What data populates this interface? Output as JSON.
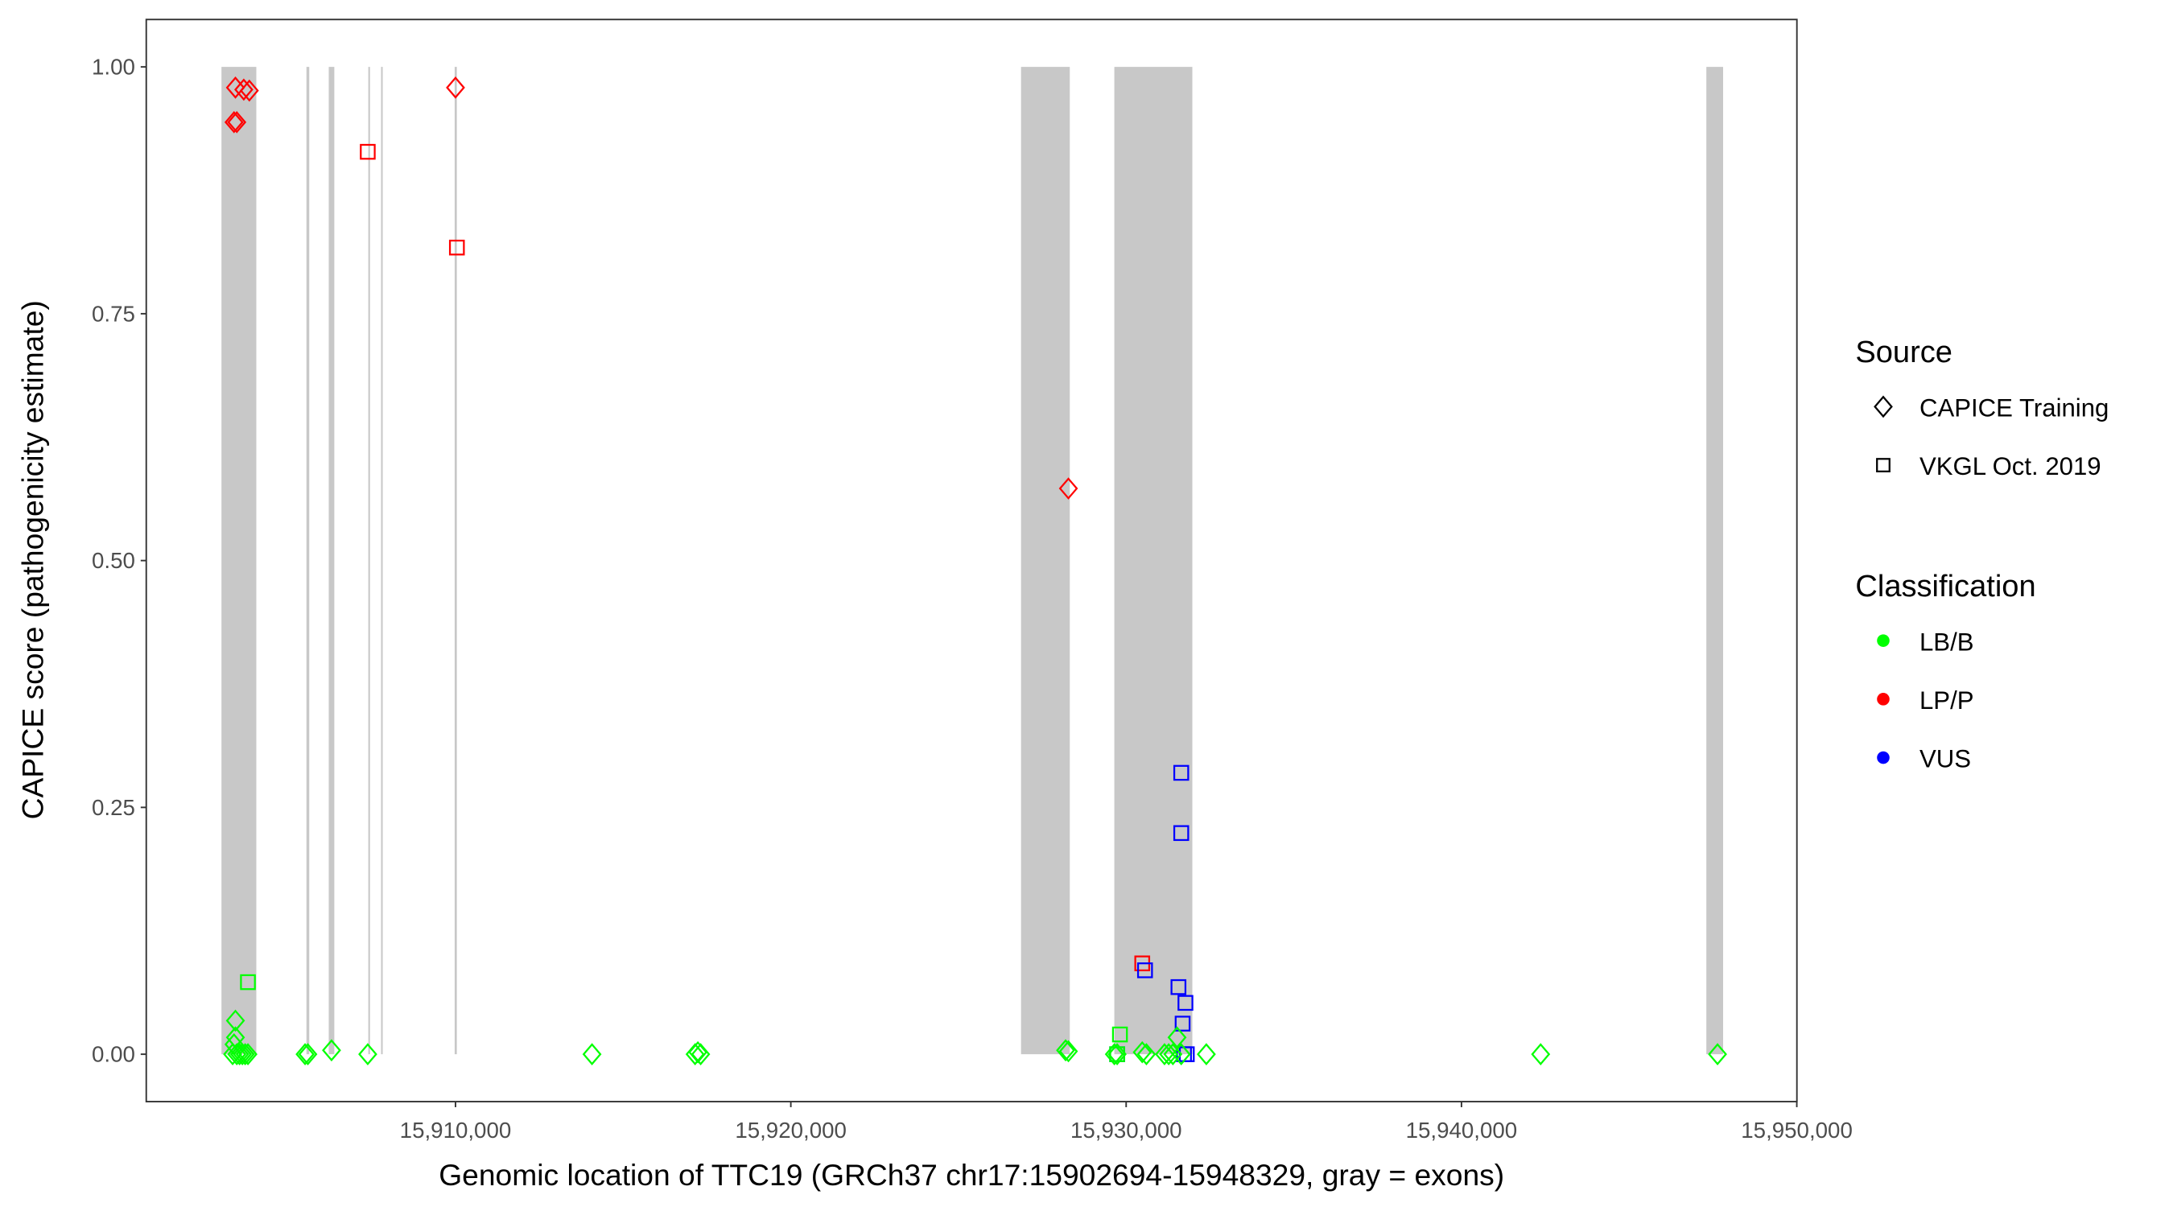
{
  "chart_data": {
    "type": "scatter",
    "xlabel": "Genomic location of TTC19 (GRCh37 chr17:15902694-15948329, gray = exons)",
    "ylabel": "CAPICE score (pathogenicity estimate)",
    "xlim": [
      15900778,
      15950003
    ],
    "ylim": [
      -0.048,
      1.048
    ],
    "x_ticks": [
      15910000,
      15920000,
      15930000,
      15940000,
      15950000
    ],
    "x_tick_labels": [
      "15,910,000",
      "15,920,000",
      "15,930,000",
      "15,940,000",
      "15,950,000"
    ],
    "y_ticks": [
      0,
      0.25,
      0.5,
      0.75,
      1.0
    ],
    "y_tick_labels": [
      "0.00",
      "0.25",
      "0.50",
      "0.75",
      "1.00"
    ],
    "grid": false,
    "exon_color": "#c8c8c8",
    "exons": [
      [
        15903021,
        15904060
      ],
      [
        15905555,
        15905639
      ],
      [
        15906220,
        15906386
      ],
      [
        15907400,
        15907450
      ],
      [
        15907780,
        15907820
      ],
      [
        15909975,
        15910040
      ],
      [
        15926865,
        15928319
      ],
      [
        15929648,
        15931974
      ],
      [
        15947303,
        15947802
      ]
    ],
    "legend": {
      "placement": "right",
      "source_title": "Source",
      "source_items": [
        {
          "label": "CAPICE Training",
          "shape": "diamond"
        },
        {
          "label": "VKGL Oct. 2019",
          "shape": "square"
        }
      ],
      "class_title": "Classification",
      "class_items": [
        {
          "label": "LB/B",
          "color": "#00ff00"
        },
        {
          "label": "LP/P",
          "color": "#ff0000"
        },
        {
          "label": "VUS",
          "color": "#0000ff"
        }
      ]
    },
    "points": [
      {
        "x": 15903437,
        "y": 0.979,
        "source": "CAPICE Training",
        "class": "LP/P"
      },
      {
        "x": 15903686,
        "y": 0.977,
        "source": "CAPICE Training",
        "class": "LP/P"
      },
      {
        "x": 15903852,
        "y": 0.976,
        "source": "CAPICE Training",
        "class": "LP/P"
      },
      {
        "x": 15903395,
        "y": 0.944,
        "source": "CAPICE Training",
        "class": "LP/P"
      },
      {
        "x": 15903478,
        "y": 0.944,
        "source": "CAPICE Training",
        "class": "LP/P"
      },
      {
        "x": 15910000,
        "y": 0.979,
        "source": "CAPICE Training",
        "class": "LP/P"
      },
      {
        "x": 15928278,
        "y": 0.573,
        "source": "CAPICE Training",
        "class": "LP/P"
      },
      {
        "x": 15907383,
        "y": 0.914,
        "source": "VKGL Oct. 2019",
        "class": "LP/P"
      },
      {
        "x": 15910042,
        "y": 0.817,
        "source": "VKGL Oct. 2019",
        "class": "LP/P"
      },
      {
        "x": 15930480,
        "y": 0.092,
        "source": "VKGL Oct. 2019",
        "class": "LP/P"
      },
      {
        "x": 15931643,
        "y": 0.285,
        "source": "VKGL Oct. 2019",
        "class": "VUS"
      },
      {
        "x": 15931643,
        "y": 0.224,
        "source": "VKGL Oct. 2019",
        "class": "VUS"
      },
      {
        "x": 15930563,
        "y": 0.085,
        "source": "VKGL Oct. 2019",
        "class": "VUS"
      },
      {
        "x": 15931560,
        "y": 0.068,
        "source": "VKGL Oct. 2019",
        "class": "VUS"
      },
      {
        "x": 15931768,
        "y": 0.052,
        "source": "VKGL Oct. 2019",
        "class": "VUS"
      },
      {
        "x": 15931684,
        "y": 0.031,
        "source": "VKGL Oct. 2019",
        "class": "VUS"
      },
      {
        "x": 15931726,
        "y": 0.0,
        "source": "VKGL Oct. 2019",
        "class": "VUS"
      },
      {
        "x": 15931809,
        "y": 0.0,
        "source": "VKGL Oct. 2019",
        "class": "VUS"
      },
      {
        "x": 15929732,
        "y": 0.0,
        "source": "VKGL Oct. 2019",
        "class": "VUS"
      },
      {
        "x": 15903810,
        "y": 0.073,
        "source": "VKGL Oct. 2019",
        "class": "LB/B"
      },
      {
        "x": 15929815,
        "y": 0.02,
        "source": "VKGL Oct. 2019",
        "class": "LB/B"
      },
      {
        "x": 15929732,
        "y": 0.0,
        "source": "VKGL Oct. 2019",
        "class": "LB/B"
      },
      {
        "x": 15903437,
        "y": 0.034,
        "source": "CAPICE Training",
        "class": "LB/B"
      },
      {
        "x": 15903437,
        "y": 0.017,
        "source": "CAPICE Training",
        "class": "LB/B"
      },
      {
        "x": 15903395,
        "y": 0.01,
        "source": "CAPICE Training",
        "class": "LB/B"
      },
      {
        "x": 15903354,
        "y": 0.0,
        "source": "CAPICE Training",
        "class": "LB/B"
      },
      {
        "x": 15903478,
        "y": 0.0,
        "source": "CAPICE Training",
        "class": "LB/B"
      },
      {
        "x": 15903561,
        "y": 0.0,
        "source": "CAPICE Training",
        "class": "LB/B"
      },
      {
        "x": 15903644,
        "y": 0.0,
        "source": "CAPICE Training",
        "class": "LB/B"
      },
      {
        "x": 15903727,
        "y": 0.0,
        "source": "CAPICE Training",
        "class": "LB/B"
      },
      {
        "x": 15903810,
        "y": 0.0,
        "source": "CAPICE Training",
        "class": "LB/B"
      },
      {
        "x": 15905514,
        "y": 0.0,
        "source": "CAPICE Training",
        "class": "LB/B"
      },
      {
        "x": 15905597,
        "y": 0.0,
        "source": "CAPICE Training",
        "class": "LB/B"
      },
      {
        "x": 15906303,
        "y": 0.004,
        "source": "CAPICE Training",
        "class": "LB/B"
      },
      {
        "x": 15907383,
        "y": 0.0,
        "source": "CAPICE Training",
        "class": "LB/B"
      },
      {
        "x": 15914071,
        "y": 0.0,
        "source": "CAPICE Training",
        "class": "LB/B"
      },
      {
        "x": 15917145,
        "y": 0.0,
        "source": "CAPICE Training",
        "class": "LB/B"
      },
      {
        "x": 15917228,
        "y": 0.002,
        "source": "CAPICE Training",
        "class": "LB/B"
      },
      {
        "x": 15917311,
        "y": 0.0,
        "source": "CAPICE Training",
        "class": "LB/B"
      },
      {
        "x": 15928194,
        "y": 0.004,
        "source": "CAPICE Training",
        "class": "LB/B"
      },
      {
        "x": 15928278,
        "y": 0.003,
        "source": "CAPICE Training",
        "class": "LB/B"
      },
      {
        "x": 15929648,
        "y": 0.0,
        "source": "CAPICE Training",
        "class": "LB/B"
      },
      {
        "x": 15929732,
        "y": 0.0,
        "source": "CAPICE Training",
        "class": "LB/B"
      },
      {
        "x": 15930480,
        "y": 0.002,
        "source": "CAPICE Training",
        "class": "LB/B"
      },
      {
        "x": 15930604,
        "y": 0.0,
        "source": "CAPICE Training",
        "class": "LB/B"
      },
      {
        "x": 15931144,
        "y": 0.0,
        "source": "CAPICE Training",
        "class": "LB/B"
      },
      {
        "x": 15931269,
        "y": 0.0,
        "source": "CAPICE Training",
        "class": "LB/B"
      },
      {
        "x": 15931393,
        "y": 0.0,
        "source": "CAPICE Training",
        "class": "LB/B"
      },
      {
        "x": 15931518,
        "y": 0.017,
        "source": "CAPICE Training",
        "class": "LB/B"
      },
      {
        "x": 15931643,
        "y": 0.0,
        "source": "CAPICE Training",
        "class": "LB/B"
      },
      {
        "x": 15932391,
        "y": 0.0,
        "source": "CAPICE Training",
        "class": "LB/B"
      },
      {
        "x": 15942361,
        "y": 0.0,
        "source": "CAPICE Training",
        "class": "LB/B"
      },
      {
        "x": 15947636,
        "y": 0.0,
        "source": "CAPICE Training",
        "class": "LB/B"
      }
    ]
  }
}
